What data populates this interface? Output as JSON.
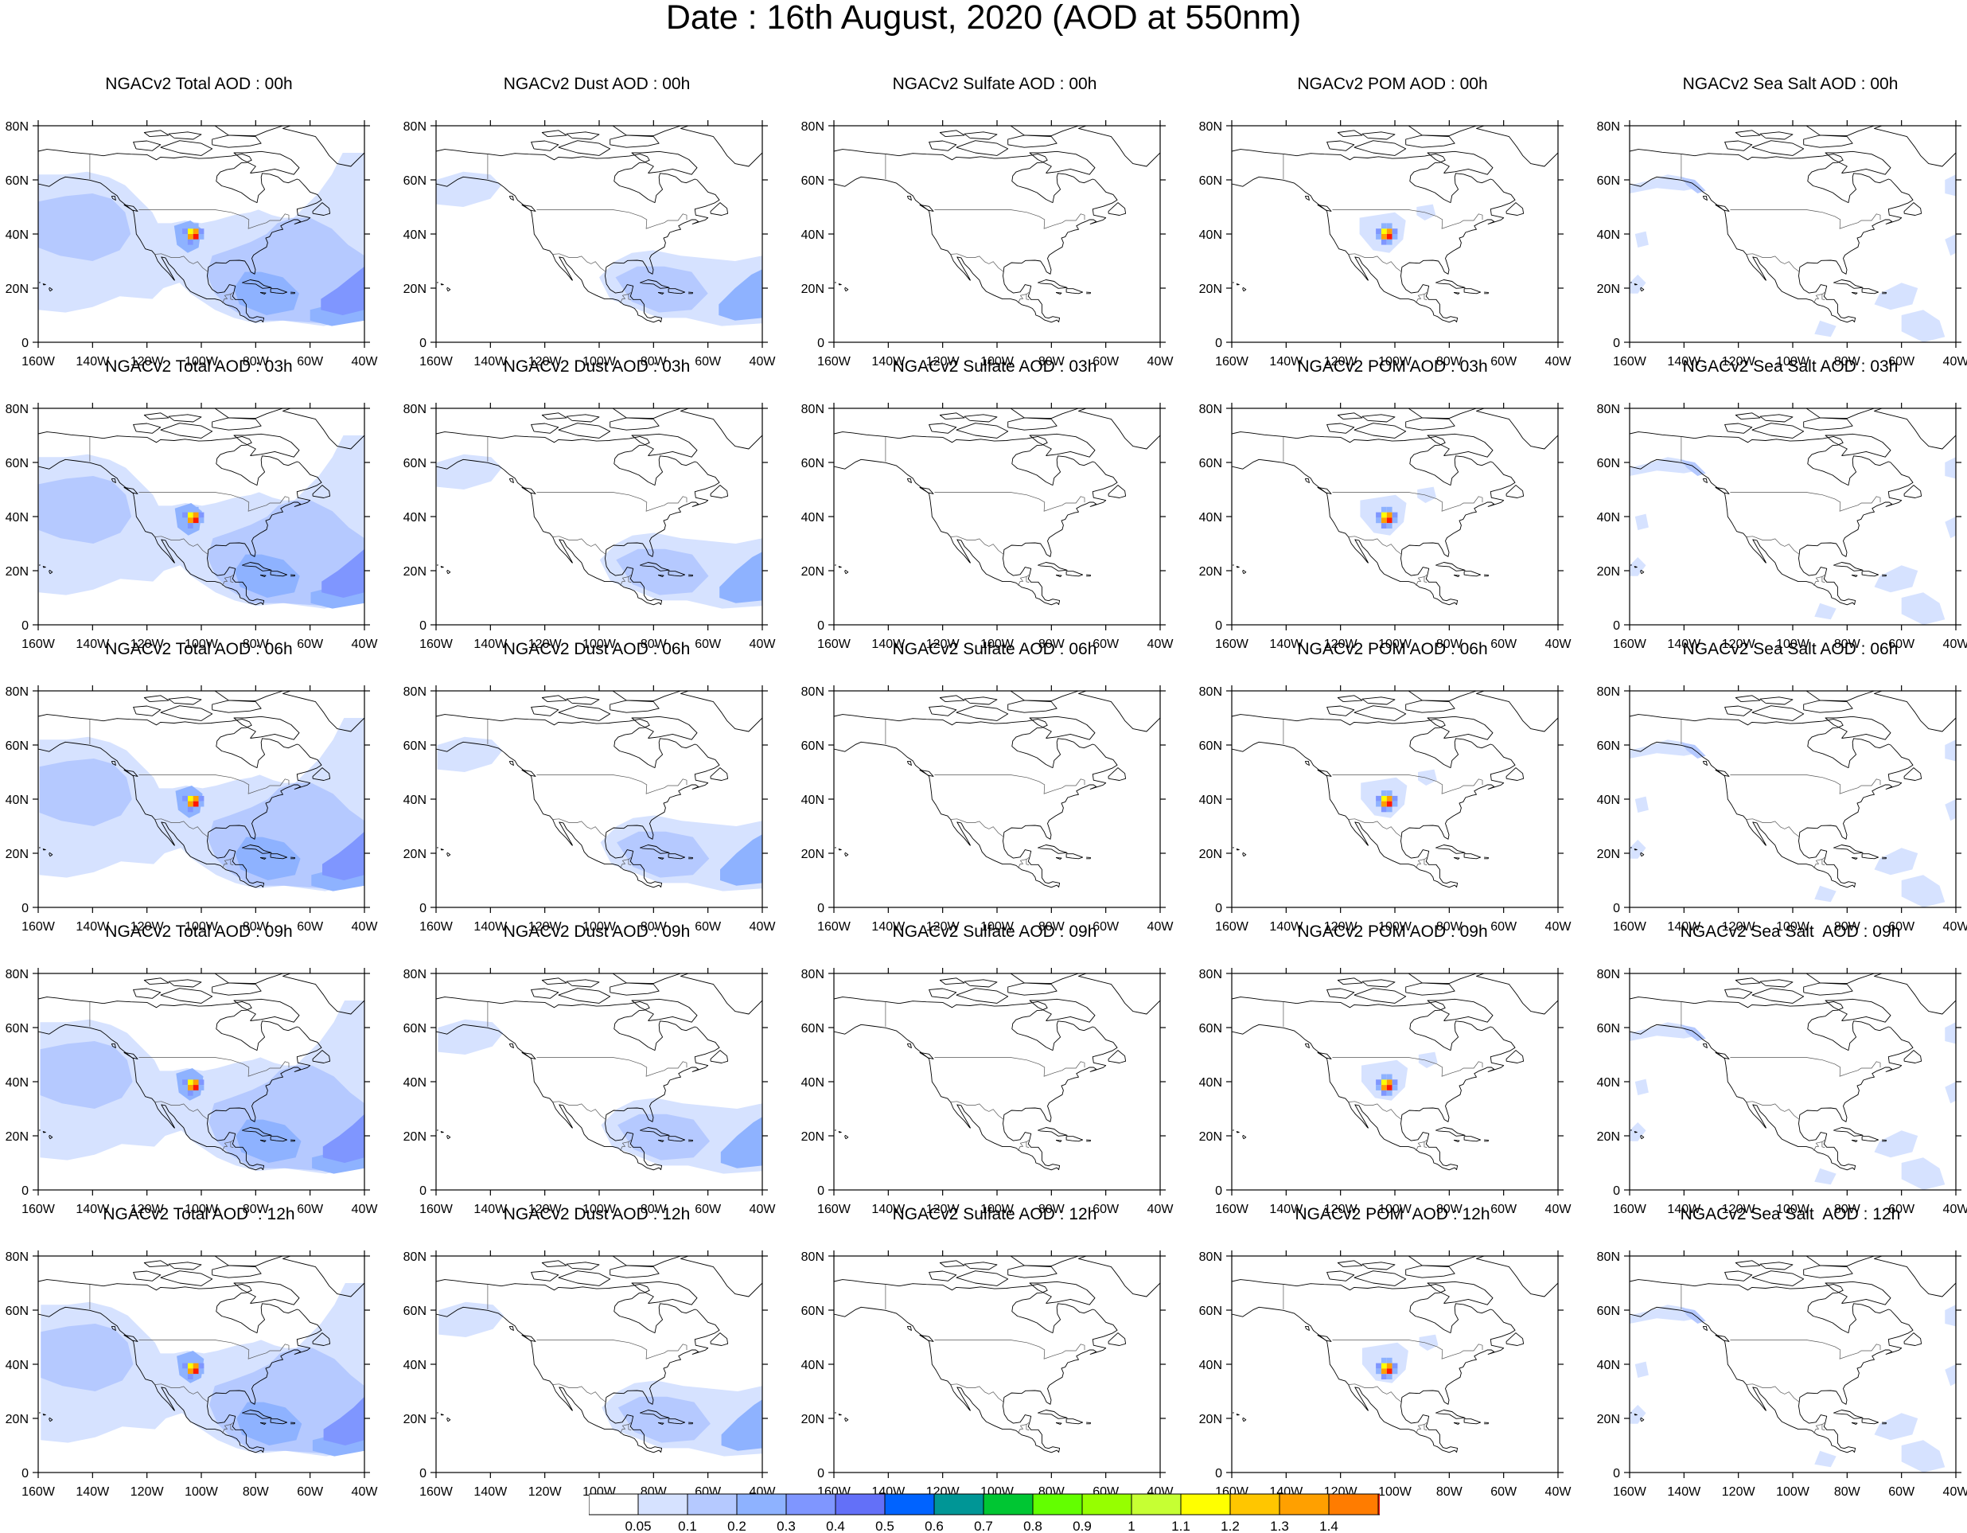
{
  "title": "Date : 16th August, 2020 (AOD at 550nm)",
  "panels": [
    {
      "title": "NGACv2 Total AOD : 00h",
      "species": "total"
    },
    {
      "title": "NGACv2 Dust AOD : 00h",
      "species": "dust"
    },
    {
      "title": "NGACv2 Sulfate AOD : 00h",
      "species": "sulfate"
    },
    {
      "title": "NGACv2 POM AOD : 00h",
      "species": "pom"
    },
    {
      "title": "NGACv2 Sea Salt AOD : 00h",
      "species": "seasalt"
    },
    {
      "title": "NGACv2 Total AOD : 03h",
      "species": "total"
    },
    {
      "title": "NGACv2 Dust AOD : 03h",
      "species": "dust"
    },
    {
      "title": "NGACv2 Sulfate AOD : 03h",
      "species": "sulfate"
    },
    {
      "title": "NGACv2 POM AOD : 03h",
      "species": "pom"
    },
    {
      "title": "NGACv2 Sea Salt AOD : 03h",
      "species": "seasalt"
    },
    {
      "title": "NGACv2 Total AOD : 06h",
      "species": "total"
    },
    {
      "title": "NGACv2 Dust AOD : 06h",
      "species": "dust"
    },
    {
      "title": "NGACv2 Sulfate AOD : 06h",
      "species": "sulfate"
    },
    {
      "title": "NGACv2 POM AOD : 06h",
      "species": "pom"
    },
    {
      "title": "NGACv2 Sea Salt AOD : 06h",
      "species": "seasalt"
    },
    {
      "title": "NGACv2 Total AOD : 09h",
      "species": "total"
    },
    {
      "title": "NGACv2 Dust AOD : 09h",
      "species": "dust"
    },
    {
      "title": "NGACv2 Sulfate AOD : 09h",
      "species": "sulfate"
    },
    {
      "title": "NGACv2 POM AOD : 09h",
      "species": "pom"
    },
    {
      "title": "NGACv2 Sea Salt  AOD : 09h",
      "species": "seasalt"
    },
    {
      "title": "NGACv2 Total AOD  : 12h",
      "species": "total"
    },
    {
      "title": "NGACv2 Dust AOD : 12h",
      "species": "dust"
    },
    {
      "title": "NGACv2 Sulfate AOD : 12h",
      "species": "sulfate"
    },
    {
      "title": "NGACv2 POM  AOD : 12h",
      "species": "pom"
    },
    {
      "title": "NGACv2 Sea Salt  AOD : 12h",
      "species": "seasalt"
    }
  ],
  "axes": {
    "lon_ticks": [
      "160W",
      "140W",
      "120W",
      "100W",
      "80W",
      "60W",
      "40W"
    ],
    "lat_ticks": [
      "0",
      "20N",
      "40N",
      "60N",
      "80N"
    ]
  },
  "colorbar": {
    "labels": [
      "0.05",
      "0.1",
      "0.2",
      "0.3",
      "0.4",
      "0.5",
      "0.6",
      "0.7",
      "0.8",
      "0.9",
      "1",
      "1.1",
      "1.2",
      "1.3",
      "1.4"
    ],
    "colors": [
      "#ffffff",
      "#d6e2ff",
      "#b5c9ff",
      "#8eb2ff",
      "#7f96ff",
      "#6370f8",
      "#0063ff",
      "#009696",
      "#00c633",
      "#63ff00",
      "#96ff00",
      "#c6ff33",
      "#ffff00",
      "#ffc600",
      "#ffa000",
      "#ff7c00",
      "#ff1900"
    ]
  },
  "colors": {
    "aod_low": "#d6e2ff",
    "aod_mid": "#b5c9ff",
    "aod_high": "#8eb2ff",
    "aod_higher": "#7f96ff",
    "plume_yellow": "#ffff00",
    "plume_orange": "#ffa000",
    "plume_red": "#ff1900",
    "coastline": "#000000"
  }
}
